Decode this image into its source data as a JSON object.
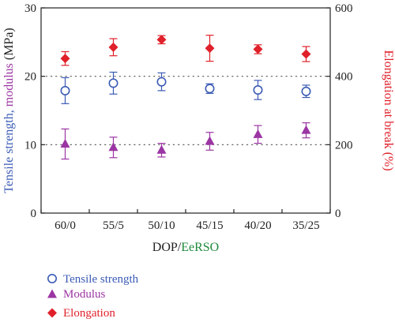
{
  "chart_data": {
    "type": "scatter",
    "categories": [
      "60/0",
      "55/5",
      "50/10",
      "45/15",
      "40/20",
      "35/25"
    ],
    "xlabel": {
      "part1": "DOP",
      "separator": "/",
      "part2": "EeRSO"
    },
    "ylabel_left": {
      "part1": "Tensile strength",
      "separator": ", ",
      "part2": "modulus",
      "part3": " (MPa)"
    },
    "ylabel_right": "Elongation at break (%)",
    "ylim_left": [
      0,
      30
    ],
    "yticks_left": [
      0,
      10,
      20,
      30
    ],
    "ylim_right": [
      0,
      600
    ],
    "yticks_right": [
      0,
      200,
      400,
      600
    ],
    "reference_lines_left": [
      10,
      20
    ],
    "series": [
      {
        "name": "Tensile strength",
        "axis": "left",
        "marker": "open-circle",
        "color": "#3b5bb5",
        "values": [
          17.9,
          19.0,
          19.2,
          18.2,
          18.0,
          17.8
        ],
        "errors": [
          1.9,
          1.6,
          1.3,
          0.7,
          1.4,
          0.9
        ]
      },
      {
        "name": "Modulus",
        "axis": "left",
        "marker": "triangle",
        "color": "#9b35a3",
        "values": [
          10.1,
          9.6,
          9.2,
          10.5,
          11.5,
          12.1
        ],
        "errors": [
          2.2,
          1.5,
          1.0,
          1.3,
          1.3,
          1.1
        ]
      },
      {
        "name": "Elongation",
        "axis": "right",
        "marker": "diamond",
        "color": "#e0202a",
        "values": [
          452,
          485,
          507,
          482,
          479,
          465
        ],
        "errors": [
          20,
          25,
          12,
          38,
          13,
          22
        ]
      }
    ],
    "colors": {
      "axis": "#222222",
      "xlabel_part1": "#222222",
      "xlabel_part2": "#1f8a3a",
      "ylabel_left_part1": "#3b5bb5",
      "ylabel_left_part2": "#9b35a3",
      "ylabel_right": "#e0202a"
    }
  }
}
